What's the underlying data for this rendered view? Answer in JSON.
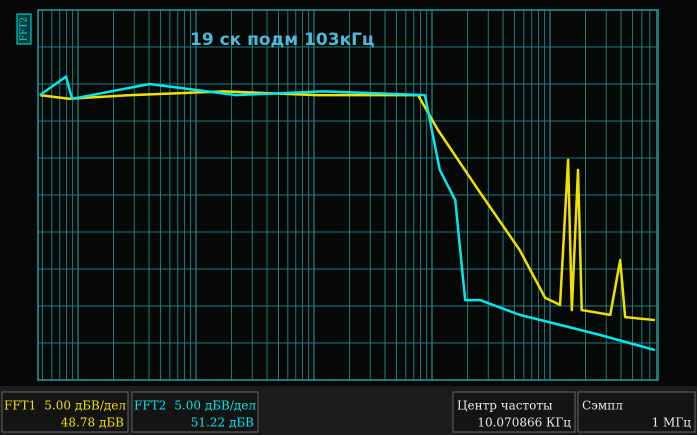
{
  "title": "19 ск подм 103кГц",
  "side_label": "FFT2",
  "panels": [
    {
      "name": "FFT1",
      "scale": "5.00 дБВ/дел",
      "level": "48.78 дБВ",
      "color": "#f0e000"
    },
    {
      "name": "FFT2",
      "scale": "5.00 дБВ/дел",
      "level": "51.22 дБВ",
      "color": "#00e8e8"
    },
    {
      "label": "Центр частоты",
      "value": "10.070866 КГц"
    },
    {
      "label": "Сэмпл",
      "value": "1 МГц"
    }
  ],
  "traces": [
    {
      "name": "FFT1",
      "color": "#f0e000",
      "x": [
        0.03,
        0.5,
        1.5,
        3,
        4.5,
        6.13,
        6.45,
        7.1,
        7.77,
        8.18,
        8.42,
        8.55,
        8.61,
        8.71,
        8.77,
        9.23,
        9.39,
        9.47,
        9.95
      ],
      "y": [
        7.7,
        7.6,
        7.7,
        7.8,
        7.7,
        7.7,
        6.76,
        5.14,
        3.51,
        2.22,
        2.03,
        5.95,
        1.89,
        5.68,
        1.89,
        1.76,
        3.24,
        1.7,
        1.62
      ]
    },
    {
      "name": "FFT2",
      "color": "#00e8e8",
      "x": [
        0.03,
        0.45,
        0.55,
        1.8,
        3.2,
        4.6,
        6.24,
        6.48,
        6.73,
        6.89,
        7.13,
        7.77,
        8.42,
        9.06,
        9.95
      ],
      "y": [
        7.7,
        8.2,
        7.6,
        8.0,
        7.7,
        7.8,
        7.7,
        5.68,
        4.86,
        2.16,
        2.16,
        1.76,
        1.49,
        1.22,
        0.81
      ]
    }
  ]
}
